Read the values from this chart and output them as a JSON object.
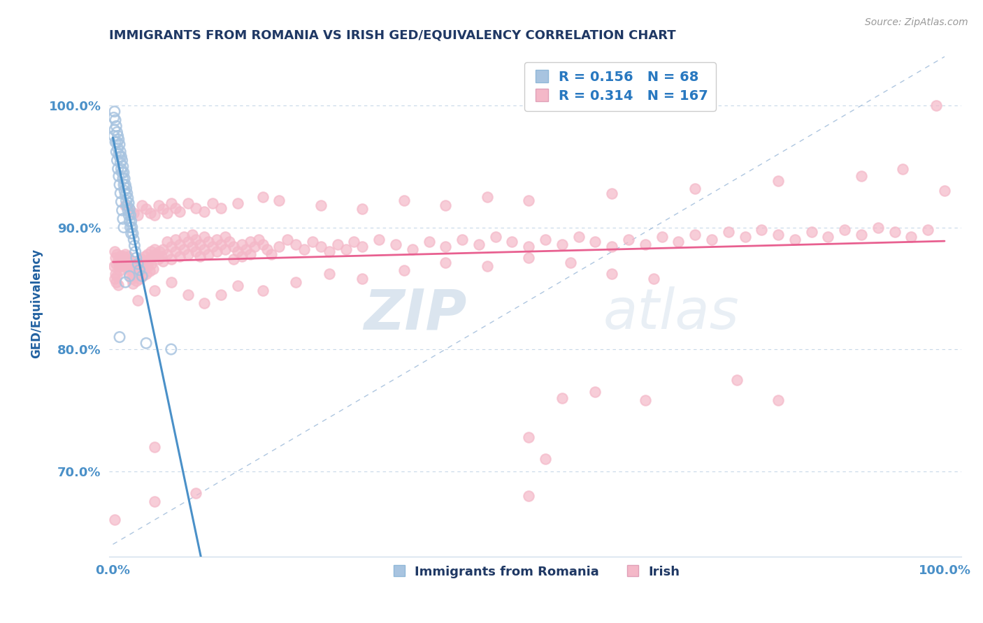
{
  "title": "IMMIGRANTS FROM ROMANIA VS IRISH GED/EQUIVALENCY CORRELATION CHART",
  "source_text": "Source: ZipAtlas.com",
  "ylabel": "GED/Equivalency",
  "ytick_labels": [
    "70.0%",
    "80.0%",
    "90.0%",
    "100.0%"
  ],
  "ytick_values": [
    0.7,
    0.8,
    0.9,
    1.0
  ],
  "xtick_labels": [
    "0.0%",
    "100.0%"
  ],
  "xtick_values": [
    0.0,
    1.0
  ],
  "legend_R1": "0.156",
  "legend_N1": "68",
  "legend_R2": "0.314",
  "legend_N2": "167",
  "legend_label1": "Immigrants from Romania",
  "legend_label2": "Irish",
  "color_romania": "#a8c4e0",
  "color_irish": "#f4b8c8",
  "color_romania_line": "#4a90c8",
  "color_irish_line": "#e86090",
  "color_diag_line": "#9ab8d8",
  "watermark_zip": "ZIP",
  "watermark_atlas": "atlas",
  "title_color": "#1f3864",
  "axis_label_color": "#2060a0",
  "tick_color": "#4a90c8",
  "romania_scatter": [
    [
      0.002,
      0.995
    ],
    [
      0.003,
      0.988
    ],
    [
      0.004,
      0.983
    ],
    [
      0.005,
      0.978
    ],
    [
      0.005,
      0.97
    ],
    [
      0.006,
      0.975
    ],
    [
      0.006,
      0.965
    ],
    [
      0.007,
      0.972
    ],
    [
      0.007,
      0.96
    ],
    [
      0.008,
      0.968
    ],
    [
      0.008,
      0.958
    ],
    [
      0.009,
      0.962
    ],
    [
      0.009,
      0.953
    ],
    [
      0.01,
      0.958
    ],
    [
      0.01,
      0.948
    ],
    [
      0.011,
      0.955
    ],
    [
      0.011,
      0.945
    ],
    [
      0.012,
      0.95
    ],
    [
      0.012,
      0.94
    ],
    [
      0.013,
      0.945
    ],
    [
      0.013,
      0.935
    ],
    [
      0.014,
      0.94
    ],
    [
      0.014,
      0.93
    ],
    [
      0.015,
      0.935
    ],
    [
      0.015,
      0.927
    ],
    [
      0.016,
      0.932
    ],
    [
      0.016,
      0.922
    ],
    [
      0.017,
      0.928
    ],
    [
      0.017,
      0.918
    ],
    [
      0.018,
      0.924
    ],
    [
      0.018,
      0.914
    ],
    [
      0.019,
      0.92
    ],
    [
      0.019,
      0.91
    ],
    [
      0.02,
      0.915
    ],
    [
      0.02,
      0.905
    ],
    [
      0.021,
      0.91
    ],
    [
      0.021,
      0.9
    ],
    [
      0.022,
      0.905
    ],
    [
      0.022,
      0.895
    ],
    [
      0.023,
      0.9
    ],
    [
      0.024,
      0.895
    ],
    [
      0.025,
      0.89
    ],
    [
      0.026,
      0.885
    ],
    [
      0.027,
      0.88
    ],
    [
      0.028,
      0.875
    ],
    [
      0.03,
      0.87
    ],
    [
      0.032,
      0.865
    ],
    [
      0.035,
      0.86
    ],
    [
      0.001,
      0.99
    ],
    [
      0.001,
      0.975
    ],
    [
      0.002,
      0.98
    ],
    [
      0.003,
      0.97
    ],
    [
      0.004,
      0.962
    ],
    [
      0.005,
      0.955
    ],
    [
      0.006,
      0.948
    ],
    [
      0.007,
      0.942
    ],
    [
      0.008,
      0.935
    ],
    [
      0.009,
      0.928
    ],
    [
      0.01,
      0.921
    ],
    [
      0.011,
      0.914
    ],
    [
      0.012,
      0.907
    ],
    [
      0.013,
      0.9
    ],
    [
      0.008,
      0.81
    ],
    [
      0.04,
      0.805
    ],
    [
      0.07,
      0.8
    ],
    [
      0.015,
      0.855
    ],
    [
      0.02,
      0.86
    ]
  ],
  "irish_scatter": [
    [
      0.002,
      0.88
    ],
    [
      0.003,
      0.875
    ],
    [
      0.004,
      0.87
    ],
    [
      0.005,
      0.878
    ],
    [
      0.006,
      0.872
    ],
    [
      0.007,
      0.868
    ],
    [
      0.008,
      0.875
    ],
    [
      0.008,
      0.865
    ],
    [
      0.009,
      0.87
    ],
    [
      0.01,
      0.877
    ],
    [
      0.01,
      0.868
    ],
    [
      0.011,
      0.874
    ],
    [
      0.012,
      0.87
    ],
    [
      0.013,
      0.876
    ],
    [
      0.014,
      0.872
    ],
    [
      0.015,
      0.878
    ],
    [
      0.015,
      0.868
    ],
    [
      0.016,
      0.874
    ],
    [
      0.017,
      0.87
    ],
    [
      0.018,
      0.876
    ],
    [
      0.018,
      0.866
    ],
    [
      0.02,
      0.872
    ],
    [
      0.02,
      0.862
    ],
    [
      0.022,
      0.868
    ],
    [
      0.022,
      0.858
    ],
    [
      0.024,
      0.864
    ],
    [
      0.024,
      0.854
    ],
    [
      0.026,
      0.87
    ],
    [
      0.026,
      0.86
    ],
    [
      0.028,
      0.866
    ],
    [
      0.028,
      0.856
    ],
    [
      0.03,
      0.872
    ],
    [
      0.03,
      0.862
    ],
    [
      0.032,
      0.868
    ],
    [
      0.032,
      0.858
    ],
    [
      0.034,
      0.874
    ],
    [
      0.034,
      0.864
    ],
    [
      0.036,
      0.87
    ],
    [
      0.036,
      0.86
    ],
    [
      0.038,
      0.876
    ],
    [
      0.038,
      0.866
    ],
    [
      0.04,
      0.872
    ],
    [
      0.04,
      0.862
    ],
    [
      0.042,
      0.878
    ],
    [
      0.042,
      0.868
    ],
    [
      0.044,
      0.874
    ],
    [
      0.044,
      0.864
    ],
    [
      0.046,
      0.88
    ],
    [
      0.046,
      0.87
    ],
    [
      0.048,
      0.876
    ],
    [
      0.048,
      0.866
    ],
    [
      0.05,
      0.882
    ],
    [
      0.052,
      0.878
    ],
    [
      0.054,
      0.874
    ],
    [
      0.056,
      0.88
    ],
    [
      0.058,
      0.876
    ],
    [
      0.06,
      0.882
    ],
    [
      0.06,
      0.872
    ],
    [
      0.065,
      0.878
    ],
    [
      0.065,
      0.888
    ],
    [
      0.07,
      0.884
    ],
    [
      0.07,
      0.874
    ],
    [
      0.075,
      0.88
    ],
    [
      0.075,
      0.89
    ],
    [
      0.08,
      0.886
    ],
    [
      0.08,
      0.876
    ],
    [
      0.085,
      0.882
    ],
    [
      0.085,
      0.892
    ],
    [
      0.09,
      0.888
    ],
    [
      0.09,
      0.878
    ],
    [
      0.095,
      0.884
    ],
    [
      0.095,
      0.894
    ],
    [
      0.1,
      0.88
    ],
    [
      0.1,
      0.89
    ],
    [
      0.105,
      0.886
    ],
    [
      0.105,
      0.876
    ],
    [
      0.11,
      0.882
    ],
    [
      0.11,
      0.892
    ],
    [
      0.115,
      0.888
    ],
    [
      0.115,
      0.878
    ],
    [
      0.12,
      0.884
    ],
    [
      0.125,
      0.89
    ],
    [
      0.125,
      0.88
    ],
    [
      0.13,
      0.886
    ],
    [
      0.135,
      0.882
    ],
    [
      0.135,
      0.892
    ],
    [
      0.14,
      0.888
    ],
    [
      0.145,
      0.884
    ],
    [
      0.145,
      0.874
    ],
    [
      0.15,
      0.88
    ],
    [
      0.155,
      0.876
    ],
    [
      0.155,
      0.886
    ],
    [
      0.16,
      0.882
    ],
    [
      0.165,
      0.888
    ],
    [
      0.165,
      0.878
    ],
    [
      0.17,
      0.884
    ],
    [
      0.175,
      0.89
    ],
    [
      0.18,
      0.886
    ],
    [
      0.185,
      0.882
    ],
    [
      0.19,
      0.878
    ],
    [
      0.2,
      0.884
    ],
    [
      0.21,
      0.89
    ],
    [
      0.22,
      0.886
    ],
    [
      0.23,
      0.882
    ],
    [
      0.24,
      0.888
    ],
    [
      0.25,
      0.884
    ],
    [
      0.26,
      0.88
    ],
    [
      0.27,
      0.886
    ],
    [
      0.28,
      0.882
    ],
    [
      0.29,
      0.888
    ],
    [
      0.3,
      0.884
    ],
    [
      0.32,
      0.89
    ],
    [
      0.34,
      0.886
    ],
    [
      0.36,
      0.882
    ],
    [
      0.38,
      0.888
    ],
    [
      0.4,
      0.884
    ],
    [
      0.42,
      0.89
    ],
    [
      0.44,
      0.886
    ],
    [
      0.46,
      0.892
    ],
    [
      0.48,
      0.888
    ],
    [
      0.5,
      0.884
    ],
    [
      0.52,
      0.89
    ],
    [
      0.54,
      0.886
    ],
    [
      0.56,
      0.892
    ],
    [
      0.58,
      0.888
    ],
    [
      0.6,
      0.884
    ],
    [
      0.62,
      0.89
    ],
    [
      0.64,
      0.886
    ],
    [
      0.66,
      0.892
    ],
    [
      0.68,
      0.888
    ],
    [
      0.7,
      0.894
    ],
    [
      0.72,
      0.89
    ],
    [
      0.74,
      0.896
    ],
    [
      0.76,
      0.892
    ],
    [
      0.78,
      0.898
    ],
    [
      0.8,
      0.894
    ],
    [
      0.82,
      0.89
    ],
    [
      0.84,
      0.896
    ],
    [
      0.86,
      0.892
    ],
    [
      0.88,
      0.898
    ],
    [
      0.9,
      0.894
    ],
    [
      0.92,
      0.9
    ],
    [
      0.94,
      0.896
    ],
    [
      0.96,
      0.892
    ],
    [
      0.98,
      0.898
    ],
    [
      1.0,
      0.93
    ],
    [
      0.03,
      0.84
    ],
    [
      0.05,
      0.848
    ],
    [
      0.07,
      0.855
    ],
    [
      0.09,
      0.845
    ],
    [
      0.11,
      0.838
    ],
    [
      0.13,
      0.845
    ],
    [
      0.15,
      0.852
    ],
    [
      0.18,
      0.848
    ],
    [
      0.22,
      0.855
    ],
    [
      0.26,
      0.862
    ],
    [
      0.3,
      0.858
    ],
    [
      0.35,
      0.865
    ],
    [
      0.4,
      0.871
    ],
    [
      0.45,
      0.868
    ],
    [
      0.5,
      0.875
    ],
    [
      0.55,
      0.871
    ],
    [
      0.6,
      0.862
    ],
    [
      0.65,
      0.858
    ],
    [
      0.001,
      0.868
    ],
    [
      0.002,
      0.858
    ],
    [
      0.003,
      0.862
    ],
    [
      0.004,
      0.855
    ],
    [
      0.005,
      0.86
    ],
    [
      0.006,
      0.853
    ],
    [
      0.015,
      0.918
    ],
    [
      0.02,
      0.915
    ],
    [
      0.025,
      0.912
    ],
    [
      0.03,
      0.91
    ],
    [
      0.035,
      0.918
    ],
    [
      0.04,
      0.915
    ],
    [
      0.045,
      0.912
    ],
    [
      0.05,
      0.91
    ],
    [
      0.055,
      0.918
    ],
    [
      0.06,
      0.915
    ],
    [
      0.065,
      0.912
    ],
    [
      0.07,
      0.92
    ],
    [
      0.075,
      0.916
    ],
    [
      0.08,
      0.913
    ],
    [
      0.09,
      0.92
    ],
    [
      0.1,
      0.916
    ],
    [
      0.11,
      0.913
    ],
    [
      0.12,
      0.92
    ],
    [
      0.13,
      0.916
    ],
    [
      0.15,
      0.92
    ],
    [
      0.18,
      0.925
    ],
    [
      0.2,
      0.922
    ],
    [
      0.25,
      0.918
    ],
    [
      0.3,
      0.915
    ],
    [
      0.35,
      0.922
    ],
    [
      0.4,
      0.918
    ],
    [
      0.45,
      0.925
    ],
    [
      0.5,
      0.922
    ],
    [
      0.6,
      0.928
    ],
    [
      0.7,
      0.932
    ],
    [
      0.8,
      0.938
    ],
    [
      0.9,
      0.942
    ],
    [
      0.95,
      0.948
    ],
    [
      0.99,
      1.0
    ],
    [
      0.05,
      0.675
    ],
    [
      0.1,
      0.682
    ],
    [
      0.5,
      0.68
    ],
    [
      0.52,
      0.71
    ],
    [
      0.05,
      0.72
    ],
    [
      0.5,
      0.728
    ],
    [
      0.54,
      0.76
    ],
    [
      0.58,
      0.765
    ],
    [
      0.64,
      0.758
    ],
    [
      0.75,
      0.775
    ],
    [
      0.8,
      0.758
    ],
    [
      0.002,
      0.66
    ]
  ]
}
